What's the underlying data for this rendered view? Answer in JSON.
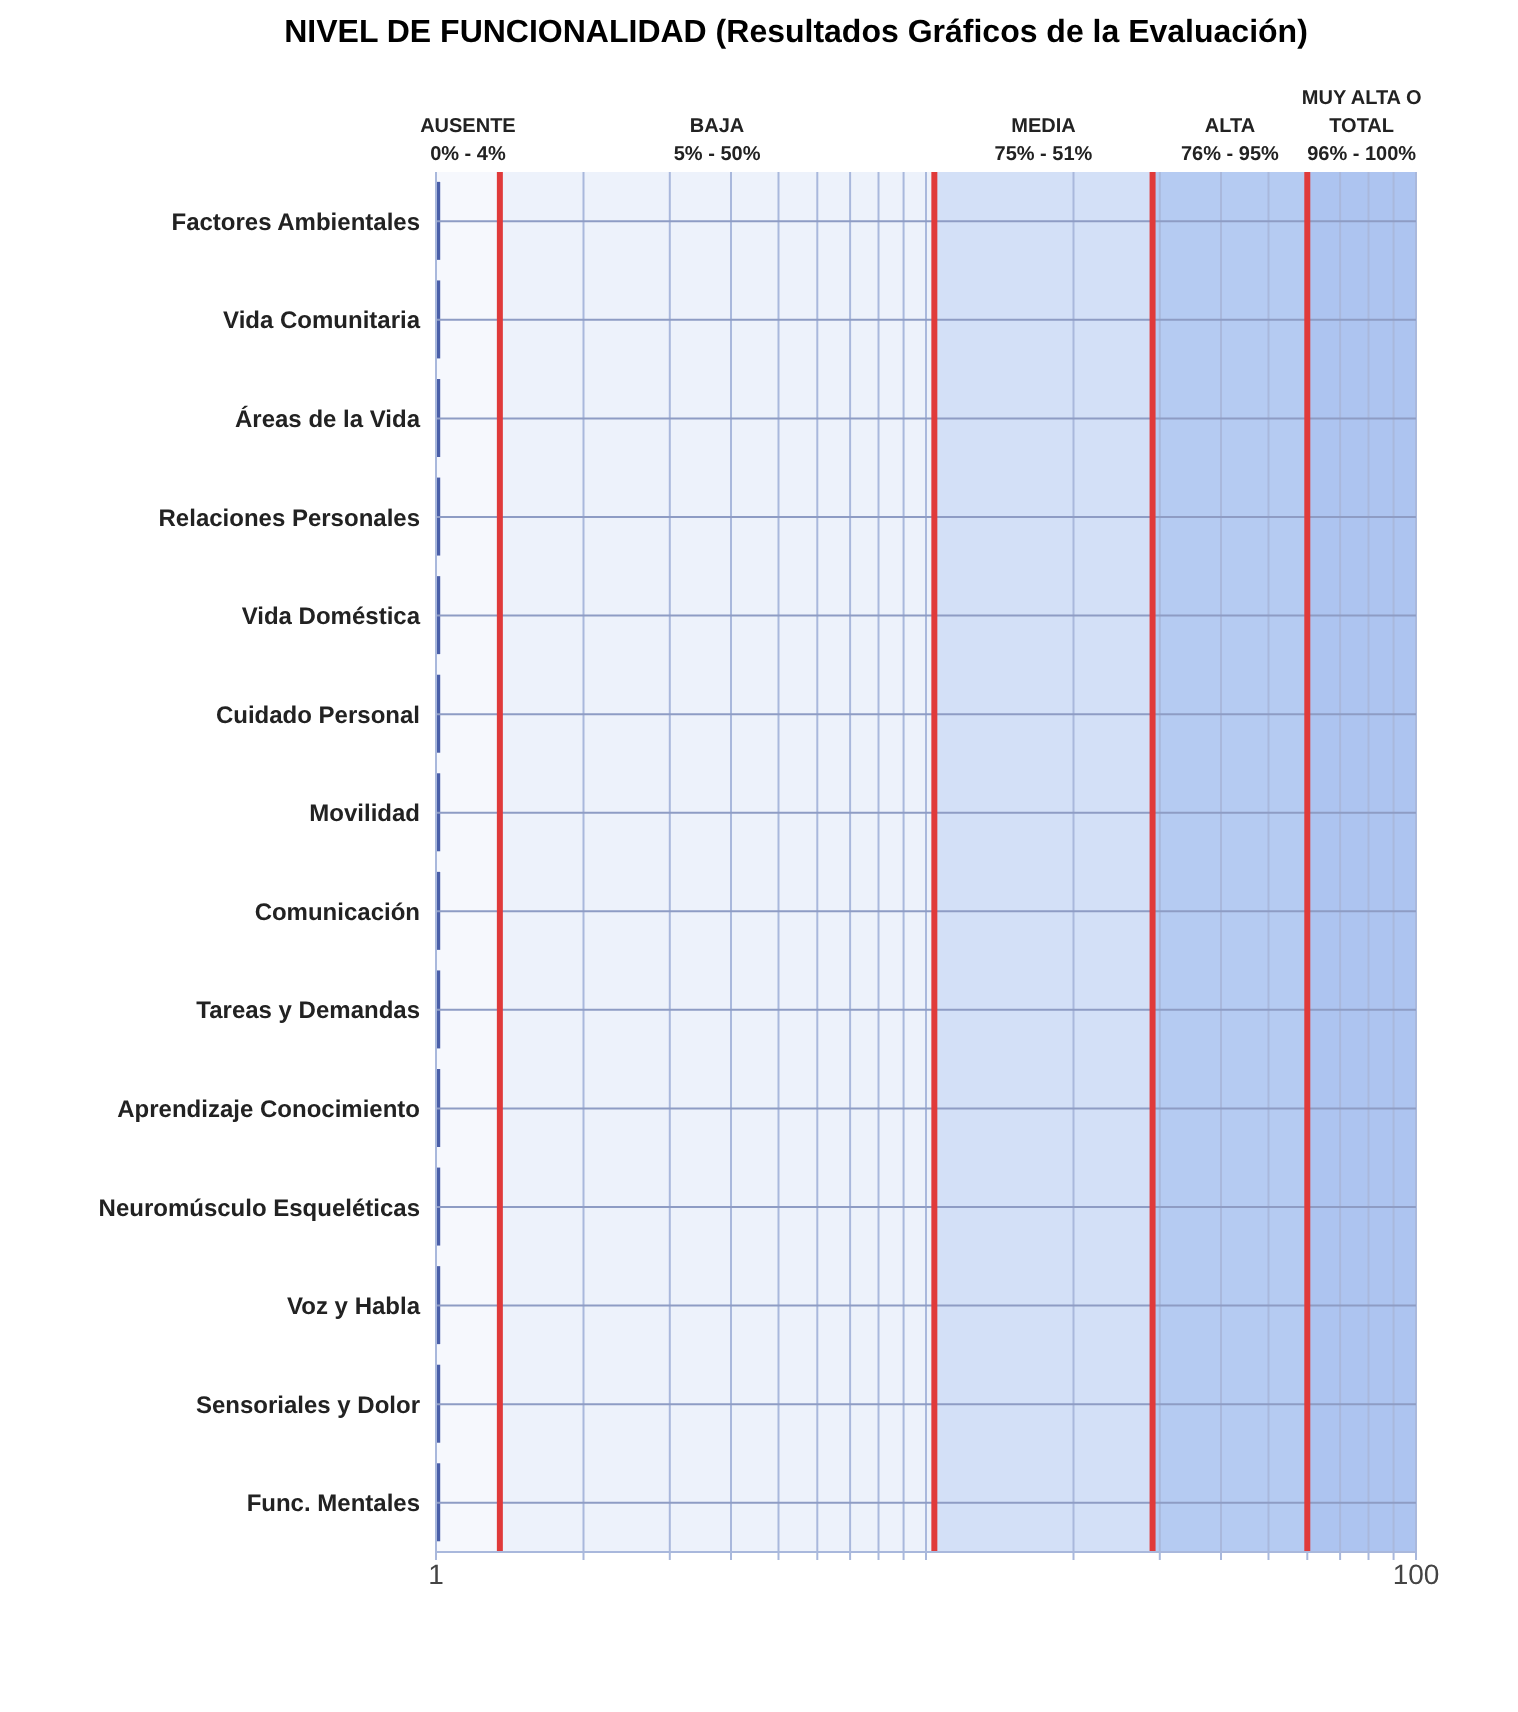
{
  "chart_data": {
    "type": "bar",
    "orientation": "horizontal",
    "log": "x",
    "title": "NIVEL DE FUNCIONALIDAD (Resultados Gráficos de la Evaluación)",
    "categories": [
      "Factores Ambientales",
      "Vida Comunitaria",
      "Áreas de la Vida",
      "Relaciones Personales",
      "Vida Doméstica",
      "Cuidado Personal",
      "Movilidad",
      "Comunicación",
      "Tareas y Demandas",
      "Aprendizaje Conocimiento",
      "Neuromúsculo Esqueléticas",
      "Voz y Habla",
      "Sensoriales y Dolor",
      "Func. Mentales"
    ],
    "values": [
      1.02,
      1.02,
      1.02,
      1.02,
      1.02,
      1.02,
      1.02,
      1.02,
      1.02,
      1.02,
      1.02,
      1.02,
      1.02,
      1.02
    ],
    "color": "#4a5fa8",
    "xlim": [
      1,
      100
    ],
    "xticks": [
      1,
      {
        "value": 2,
        "label": null
      },
      {
        "value": 3,
        "label": null
      },
      {
        "value": 4,
        "label": null
      },
      {
        "value": 5,
        "label": null
      },
      {
        "value": 6,
        "label": null
      },
      {
        "value": 7,
        "label": null
      },
      {
        "value": 8,
        "label": null
      },
      {
        "value": 9,
        "label": null
      },
      {
        "value": 10,
        "label": null
      },
      {
        "value": 20,
        "label": null
      },
      {
        "value": 30,
        "label": null
      },
      {
        "value": 40,
        "label": null
      },
      {
        "value": 50,
        "label": null
      },
      {
        "value": 60,
        "label": null
      },
      {
        "value": 70,
        "label": null
      },
      {
        "value": 80,
        "label": null
      },
      {
        "value": 90,
        "label": null
      },
      100
    ],
    "grid": true,
    "bands": [
      {
        "axis": "x",
        "from": 1,
        "to": 1.35,
        "label": "AUSENTE\n0% - 4%",
        "color": "#f6f8fd"
      },
      {
        "axis": "x",
        "from": 1.35,
        "to": 10.4,
        "label": "BAJA\n5% - 50%",
        "color": "#edf2fb"
      },
      {
        "axis": "x",
        "from": 10.4,
        "to": 29,
        "label": "MEDIA\n75% - 51%",
        "color": "#d3e0f7"
      },
      {
        "axis": "x",
        "from": 29,
        "to": 60,
        "label": "ALTA\n76% - 95%",
        "color": "#b5cbf2"
      },
      {
        "axis": "x",
        "from": 60,
        "to": 100,
        "label": "MUY ALTA O\nTOTAL\n96% - 100%",
        "color": "#adc4f0"
      }
    ],
    "ref_lines": [
      {
        "axis": "x",
        "value": 1.35,
        "color": "#e03a3a"
      },
      {
        "axis": "x",
        "value": 10.4,
        "color": "#e03a3a"
      },
      {
        "axis": "x",
        "value": 29,
        "color": "#e03a3a"
      },
      {
        "axis": "x",
        "value": 60,
        "color": "#e03a3a"
      }
    ]
  }
}
